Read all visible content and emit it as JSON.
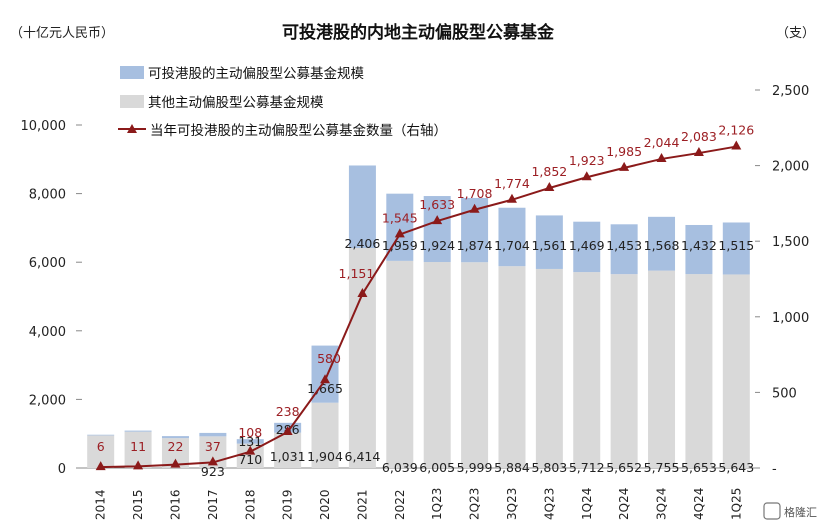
{
  "chart_data": {
    "type": "bar",
    "title": "可投港股的内地主动偏股型公募基金",
    "left_unit": "（十亿元人民币）",
    "right_unit": "（支）",
    "categories": [
      "2014",
      "2015",
      "2016",
      "2017",
      "2018",
      "2019",
      "2020",
      "2021",
      "2022",
      "1Q23",
      "2Q23",
      "3Q23",
      "4Q23",
      "1Q24",
      "2Q24",
      "3Q24",
      "4Q24",
      "1Q25"
    ],
    "y_left": {
      "min": 0,
      "max": 10000,
      "ticks": [
        "0",
        "2,000",
        "4,000",
        "6,000",
        "8,000",
        "10,000"
      ]
    },
    "y_right": {
      "min": 0,
      "max": 2500,
      "ticks": [
        "-",
        "500",
        "1,000",
        "1,500",
        "2,000",
        "2,500"
      ]
    },
    "colors": {
      "hk": "#a7bfe0",
      "other": "#d9d9d9",
      "line": "#8b1a1a",
      "label_red": "#9c1f24"
    },
    "series": [
      {
        "name": "其他主动偏股型公募基金规模",
        "stack_order": 0,
        "values": [
          950,
          1060,
          870,
          923,
          710,
          1031,
          1904,
          6414,
          6039,
          6005,
          5999,
          5884,
          5803,
          5712,
          5652,
          5755,
          5653,
          5643
        ],
        "labels": [
          "",
          "",
          "",
          "923",
          "710",
          "1,031",
          "1,904",
          "6,414",
          "6,039",
          "6,005",
          "5,999",
          "5,884",
          "5,803",
          "5,712",
          "5,652",
          "5,755",
          "5,653",
          "5,643"
        ]
      },
      {
        "name": "可投港股的主动偏股型公募基金规模",
        "stack_order": 1,
        "values": [
          20,
          30,
          60,
          100,
          131,
          286,
          1665,
          2406,
          1959,
          1924,
          1874,
          1704,
          1561,
          1469,
          1453,
          1568,
          1432,
          1515
        ],
        "labels": [
          "",
          "",
          "",
          "",
          "131",
          "286",
          "1,665",
          "2,406",
          "1,959",
          "1,924",
          "1,874",
          "1,704",
          "1,561",
          "1,469",
          "1,453",
          "1,568",
          "1,432",
          "1,515"
        ]
      },
      {
        "name": "当年可投港股的主动偏股型公募基金数量（右轴）",
        "axis": "right",
        "type": "line",
        "values": [
          6,
          11,
          22,
          37,
          108,
          238,
          580,
          1151,
          1545,
          1633,
          1708,
          1774,
          1852,
          1923,
          1985,
          2044,
          2083,
          2126
        ],
        "labels": [
          "6",
          "11",
          "22",
          "37",
          "108",
          "238",
          "580",
          "1,151",
          "1,545",
          "1,633",
          "1,708",
          "1,774",
          "1,852",
          "1,923",
          "1,985",
          "2,044",
          "2,083",
          "2,126"
        ]
      }
    ],
    "legend_position": "top-left",
    "grid": false
  },
  "watermark": "格隆汇"
}
